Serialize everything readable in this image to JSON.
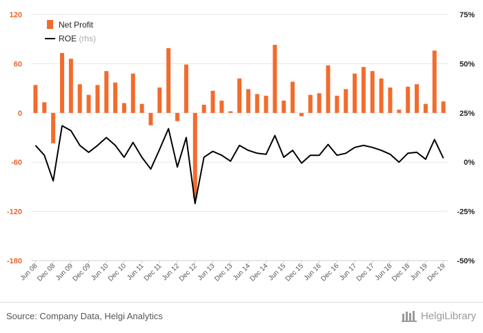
{
  "chart_data": {
    "type": "bar+line",
    "title": "",
    "categories": [
      "Jun 08",
      "Sep 08",
      "Dec 08",
      "Mar 09",
      "Jun 09",
      "Sep 09",
      "Dec 09",
      "Mar 10",
      "Jun 10",
      "Sep 10",
      "Dec 10",
      "Mar 11",
      "Jun 11",
      "Sep 11",
      "Dec 11",
      "Mar 12",
      "Jun 12",
      "Sep 12",
      "Dec 12",
      "Mar 13",
      "Jun 13",
      "Sep 13",
      "Dec 13",
      "Mar 14",
      "Jun 14",
      "Sep 14",
      "Dec 14",
      "Mar 15",
      "Jun 15",
      "Sep 15",
      "Dec 15",
      "Mar 16",
      "Jun 16",
      "Sep 16",
      "Dec 16",
      "Mar 17",
      "Jun 17",
      "Sep 17",
      "Dec 17",
      "Mar 18",
      "Jun 18",
      "Sep 18",
      "Dec 18",
      "Mar 19",
      "Jun 19",
      "Sep 19",
      "Dec 19"
    ],
    "x_tick_labels": [
      "Jun 08",
      "Dec 08",
      "Jun 09",
      "Dec 09",
      "Jun 10",
      "Dec 10",
      "Jun 11",
      "Dec 11",
      "Jun 12",
      "Dec 12",
      "Jun 13",
      "Dec 13",
      "Jun 14",
      "Dec 14",
      "Jun 15",
      "Dec 15",
      "Jun 16",
      "Dec 16",
      "Jun 17",
      "Dec 17",
      "Jun 18",
      "Dec 18",
      "Jun 19",
      "Dec 19"
    ],
    "series": [
      {
        "name": "Net Profit",
        "type": "bar",
        "axis": "left",
        "color": "#f26c2d",
        "values": [
          34,
          13,
          -37,
          73,
          66,
          35,
          22,
          34,
          51,
          37,
          12,
          48,
          11,
          -15,
          31,
          79,
          -10,
          59,
          -104,
          10,
          27,
          15,
          2,
          42,
          29,
          23,
          21,
          83,
          15,
          38,
          -4,
          22,
          24,
          58,
          21,
          29,
          48,
          56,
          51,
          42,
          31,
          4,
          32,
          35,
          11,
          76,
          14
        ]
      },
      {
        "name": "ROE",
        "name_suffix": "(rhs)",
        "type": "line",
        "axis": "right",
        "color": "#000000",
        "values": [
          8.5,
          3.5,
          -9.5,
          18.5,
          16,
          8.5,
          5,
          8.5,
          12.5,
          8.5,
          2.5,
          10,
          2.5,
          -3.5,
          6.5,
          17,
          -2.5,
          12.5,
          -21,
          2.5,
          5.5,
          3.5,
          0.5,
          8.5,
          6,
          4.5,
          4,
          13.5,
          2.5,
          6,
          -0.5,
          3.5,
          3.5,
          9,
          3.5,
          4.5,
          7.5,
          8.5,
          7.5,
          6,
          4,
          0,
          4.5,
          5,
          1.5,
          11.5,
          2
        ]
      }
    ],
    "left_axis": {
      "range": [
        -180,
        120
      ],
      "ticks": [
        "120",
        "60",
        "0",
        "-60",
        "-120",
        "-180"
      ],
      "tick_values": [
        120,
        60,
        0,
        -60,
        -120,
        -180
      ],
      "color": "#e8642c"
    },
    "right_axis": {
      "range": [
        -50,
        75
      ],
      "ticks": [
        "75%",
        "50%",
        "25%",
        "0%",
        "-25%",
        "-50%"
      ],
      "tick_values": [
        75,
        50,
        25,
        0,
        -25,
        -50
      ],
      "color": "#222222"
    },
    "grid": "horizontal",
    "legend": "top-left"
  },
  "legend": {
    "net_profit_label": "Net Profit",
    "roe_label": "ROE",
    "roe_suffix": "(rhs)"
  },
  "footer": {
    "source": "Source: Company Data, Helgi Analytics",
    "logo_text": "HelgiLibrary"
  }
}
